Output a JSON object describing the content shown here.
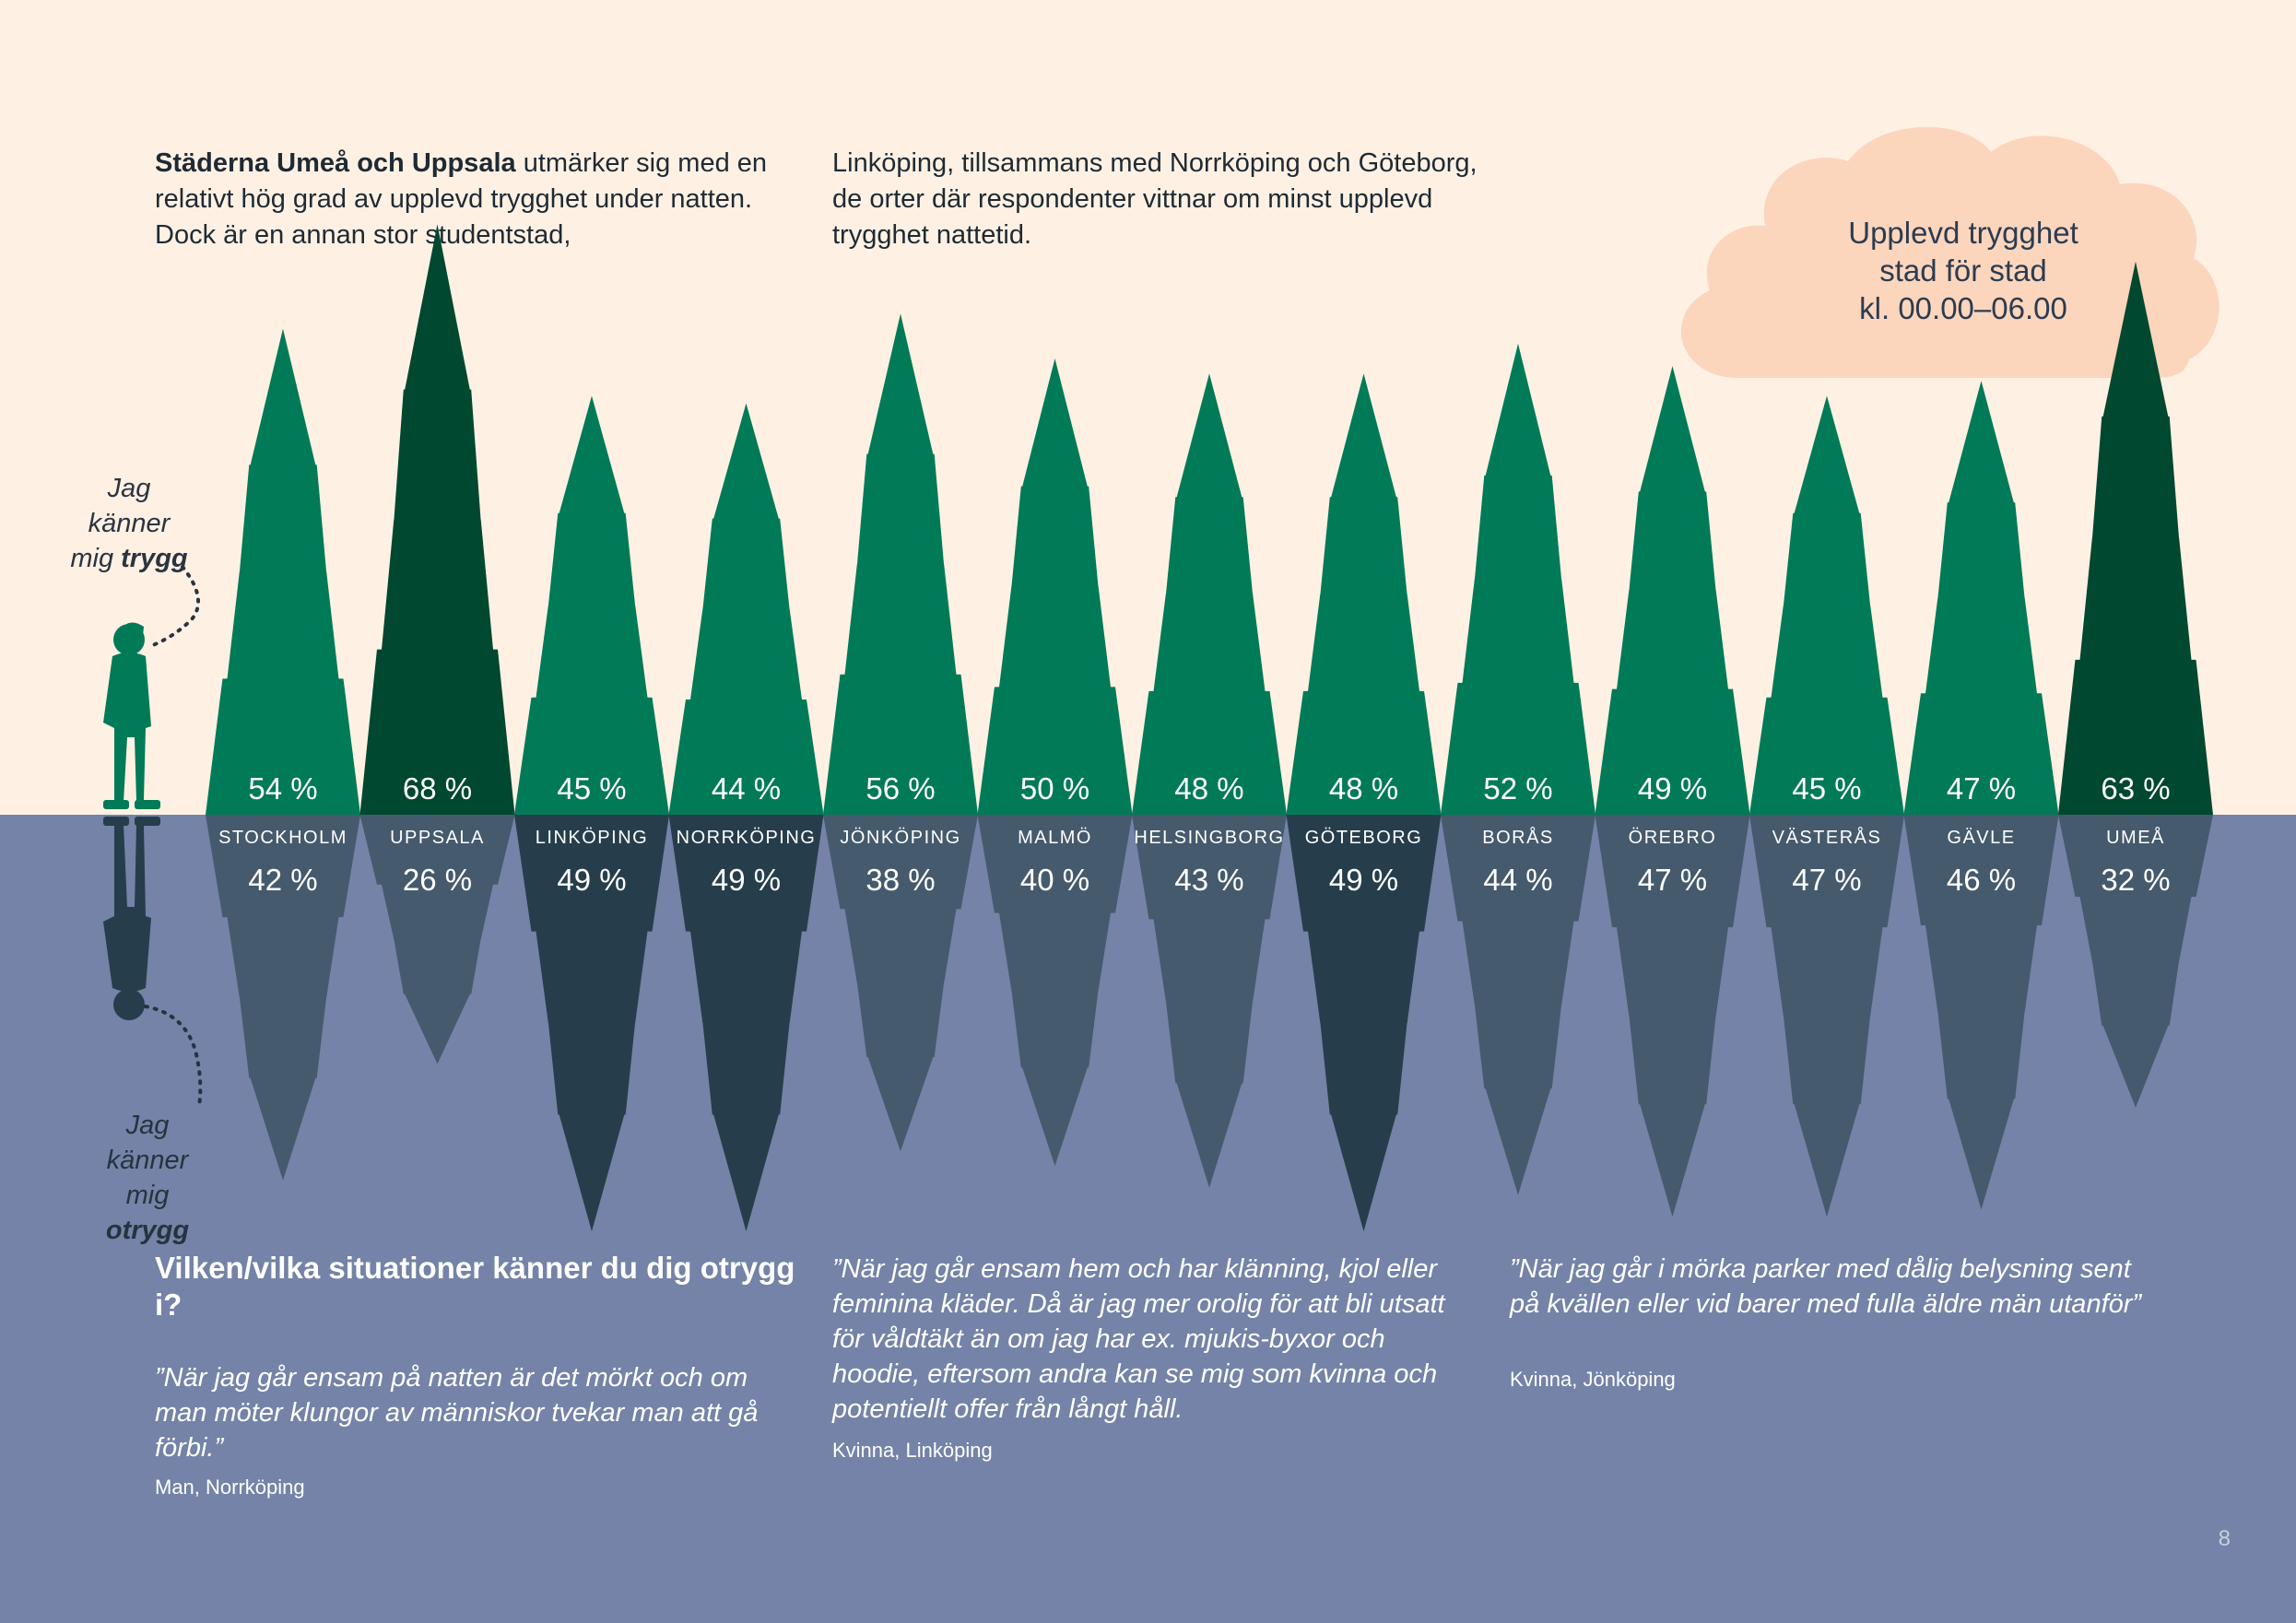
{
  "intro_left": {
    "bold": "Städerna Umeå och Uppsala",
    "text": " utmärker sig med en relativt hög grad av upplevd trygghet under natten. Dock är en annan stor studentstad,"
  },
  "intro_right": "Linköping, tillsammans med Norrköping och Göteborg, de orter där respondenter vittnar om minst upplevd trygghet nattetid.",
  "cloud": {
    "line1": "Upplevd trygghet",
    "line2": "stad för stad",
    "line3": "kl. 00.00–06.00"
  },
  "side_labels": {
    "safe_line1": "Jag känner",
    "safe_line2_prefix": "mig ",
    "safe_line2_bold": "trygg",
    "unsafe_line1": "Jag känner",
    "unsafe_line2_prefix": "mig ",
    "unsafe_line2_bold": "otrygg"
  },
  "chart_data": {
    "type": "bar",
    "title": "Upplevd trygghet stad för stad kl. 00.00–06.00",
    "categories": [
      "STOCKHOLM",
      "UPPSALA",
      "LINKÖPING",
      "NORRKÖPING",
      "JÖNKÖPING",
      "MALMÖ",
      "HELSINGBORG",
      "GÖTEBORG",
      "BORÅS",
      "ÖREBRO",
      "VÄSTERÅS",
      "GÄVLE",
      "UMEÅ"
    ],
    "series": [
      {
        "name": "Jag känner mig trygg",
        "values": [
          54,
          68,
          45,
          44,
          56,
          50,
          48,
          48,
          52,
          49,
          45,
          47,
          63
        ]
      },
      {
        "name": "Jag känner mig otrygg",
        "values": [
          42,
          26,
          49,
          49,
          38,
          40,
          43,
          49,
          44,
          47,
          47,
          46,
          32
        ]
      }
    ],
    "value_suffix": " %",
    "highlight_safe": [
      "UPPSALA",
      "UMEÅ"
    ],
    "highlight_unsafe": [
      "LINKÖPING",
      "NORRKÖPING",
      "GÖTEBORG"
    ]
  },
  "colors": {
    "sky": "#fef1e4",
    "water": "#7483a7",
    "tree": "#007a57",
    "tree_dark": "#00482f",
    "reflection": "#455a6d",
    "reflection_dark": "#263e4b",
    "cloud": "#fcd5bd"
  },
  "question": "Vilken/vilka situationer känner du dig otrygg i?",
  "quotes": [
    {
      "text": "”När jag går ensam på natten är det mörkt och om man möter klungor av människor tvekar man att gå förbi.”",
      "author": "Man, Norrköping"
    },
    {
      "text": "”När jag går ensam hem och har klänning, kjol eller feminina kläder. Då är jag mer orolig för att bli utsatt för våldtäkt än om jag har ex. mjukis-byxor och hoodie, eftersom andra kan se mig som kvinna och potentiellt offer från långt håll.",
      "author": "Kvinna, Linköping"
    },
    {
      "text": "”När jag går i mörka parker med dålig belysning sent på kvällen eller vid barer med fulla äldre män utanför”",
      "author": "Kvinna, Jönköping"
    }
  ],
  "page_number": "8"
}
